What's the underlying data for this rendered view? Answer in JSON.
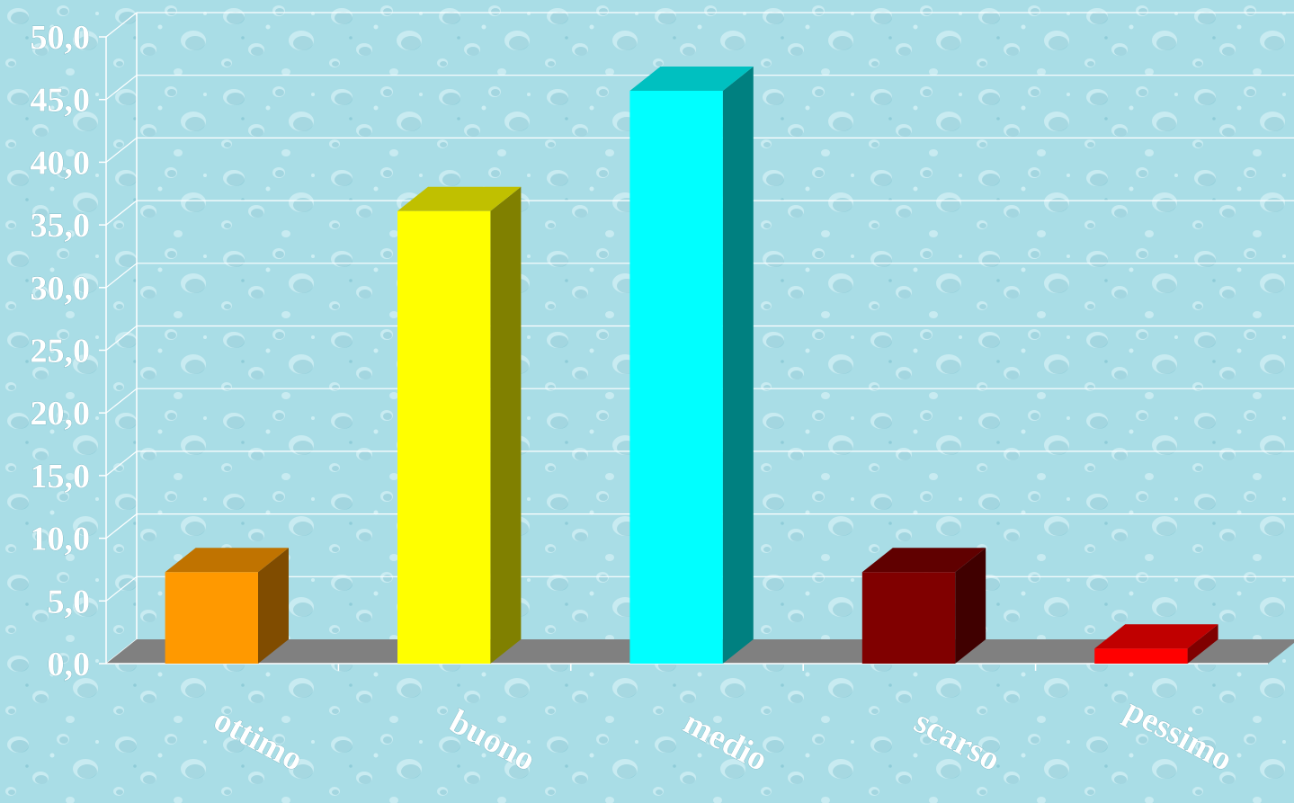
{
  "colors": {
    "background": "#a9dde6",
    "drop_light": "#d6f2f6",
    "drop_dark": "#7dc2cf",
    "gridline": "#ffffff",
    "floor": "#808080",
    "label_text": "#ffffff"
  },
  "chart_data": {
    "type": "bar",
    "style": "3d",
    "grid": true,
    "legend": "none",
    "ylim": [
      0,
      50
    ],
    "ytick_step": 5,
    "yticks": [
      "0,0",
      "5,0",
      "10,0",
      "15,0",
      "20,0",
      "25,0",
      "30,0",
      "35,0",
      "40,0",
      "45,0",
      "50,0"
    ],
    "categories": [
      "ottimo",
      "buono",
      "medio",
      "scarso",
      "pessimo"
    ],
    "values": [
      7.3,
      36.1,
      45.7,
      7.3,
      1.2
    ],
    "bar_colors": [
      {
        "front": "#ff9900",
        "side": "#804c00",
        "top": "#c07300"
      },
      {
        "front": "#ffff00",
        "side": "#808000",
        "top": "#c0c000"
      },
      {
        "front": "#00ffff",
        "side": "#008080",
        "top": "#00c0c0"
      },
      {
        "front": "#800000",
        "side": "#400000",
        "top": "#600000"
      },
      {
        "front": "#ff0000",
        "side": "#800000",
        "top": "#c00000"
      }
    ]
  }
}
